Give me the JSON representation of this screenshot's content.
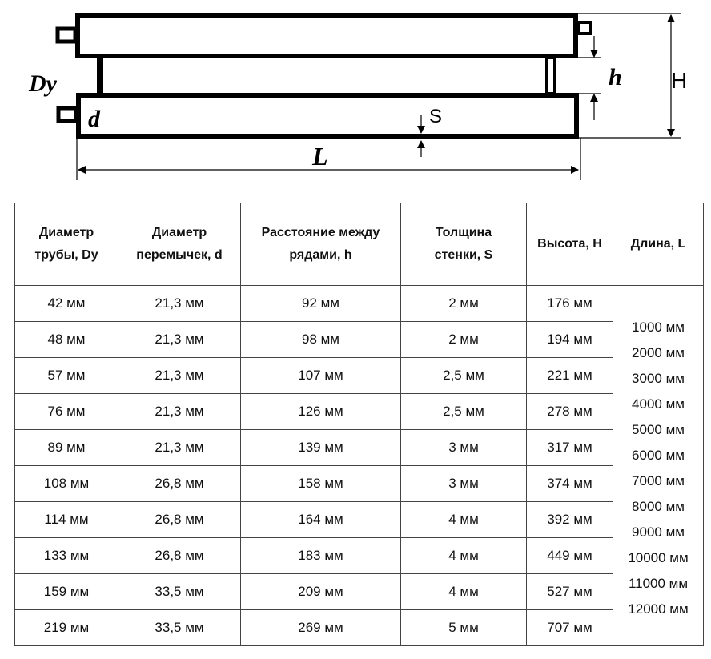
{
  "diagram": {
    "labels": {
      "Dy": "Dy",
      "d": "d",
      "S": "S",
      "h": "h",
      "H": "H",
      "L": "L"
    }
  },
  "table": {
    "headers": [
      "Диаметр трубы, Dy",
      "Диаметр перемычек, d",
      "Расстояние между рядами, h",
      "Толщина стенки, S",
      "Высота, H",
      "Длина, L"
    ],
    "rows": [
      [
        "42 мм",
        "21,3 мм",
        "92 мм",
        "2 мм",
        "176 мм"
      ],
      [
        "48 мм",
        "21,3 мм",
        "98 мм",
        "2 мм",
        "194 мм"
      ],
      [
        "57 мм",
        "21,3 мм",
        "107 мм",
        "2,5 мм",
        "221 мм"
      ],
      [
        "76 мм",
        "21,3 мм",
        "126 мм",
        "2,5 мм",
        "278 мм"
      ],
      [
        "89 мм",
        "21,3 мм",
        "139 мм",
        "3 мм",
        "317 мм"
      ],
      [
        "108 мм",
        "26,8 мм",
        "158 мм",
        "3 мм",
        "374 мм"
      ],
      [
        "114 мм",
        "26,8 мм",
        "164 мм",
        "4 мм",
        "392 мм"
      ],
      [
        "133 мм",
        "26,8 мм",
        "183 мм",
        "4 мм",
        "449 мм"
      ],
      [
        "159 мм",
        "33,5 мм",
        "209 мм",
        "4 мм",
        "527 мм"
      ],
      [
        "219 мм",
        "33,5 мм",
        "269 мм",
        "5 мм",
        "707 мм"
      ]
    ],
    "lengths": [
      "1000 мм",
      "2000 мм",
      "3000 мм",
      "4000 мм",
      "5000 мм",
      "6000 мм",
      "7000 мм",
      "8000 мм",
      "9000 мм",
      "10000 мм",
      "11000 мм",
      "12000 мм"
    ]
  }
}
